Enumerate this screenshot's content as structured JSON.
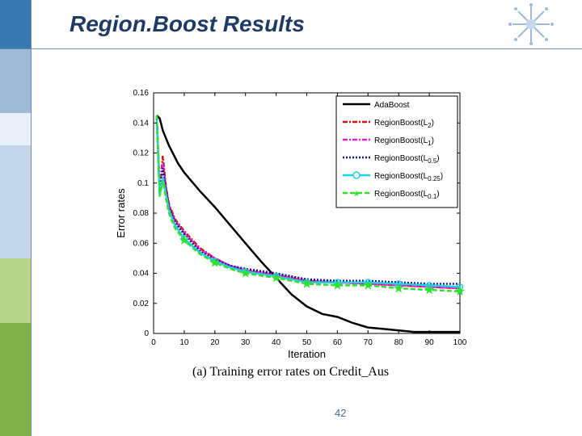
{
  "slide": {
    "title": "Region.Boost Results",
    "page_number": "42",
    "caption": "(a) Training error rates on Credit_Aus"
  },
  "colors": {
    "band_blue": "#3a78b4",
    "band_light": "#9dbbd8",
    "band_green": "#7fb24a",
    "band_lightgreen": "#b9d68a",
    "title": "#1f3b63"
  },
  "chart_data": {
    "type": "line",
    "xlabel": "Iteration",
    "ylabel": "Error rates",
    "xlim": [
      0,
      100
    ],
    "ylim": [
      0,
      0.16
    ],
    "xticks": [
      "0",
      "10",
      "20",
      "30",
      "40",
      "50",
      "60",
      "70",
      "80",
      "90",
      "100"
    ],
    "yticks": [
      "0",
      "0.02",
      "0.04",
      "0.06",
      "0.08",
      "0.1",
      "0.12",
      "0.14",
      "0.16"
    ],
    "grid": false,
    "legend_position": "top-right",
    "series": [
      {
        "name": "AdaBoost",
        "color": "#000000",
        "style": "solid",
        "marker": "none",
        "x": [
          1,
          2,
          3,
          5,
          8,
          10,
          15,
          20,
          25,
          30,
          35,
          40,
          45,
          50,
          55,
          60,
          65,
          70,
          75,
          80,
          85,
          90,
          95,
          100
        ],
        "y": [
          0.145,
          0.143,
          0.135,
          0.125,
          0.113,
          0.107,
          0.095,
          0.084,
          0.072,
          0.06,
          0.048,
          0.037,
          0.026,
          0.018,
          0.013,
          0.011,
          0.007,
          0.004,
          0.003,
          0.002,
          0.001,
          0.001,
          0.001,
          0.001
        ]
      },
      {
        "name": "RegionBoost(L2)",
        "label_main": "RegionBoost(L",
        "label_sub": "2",
        "label_end": ")",
        "color": "#d01010",
        "style": "dashdot",
        "marker": "none",
        "x": [
          1,
          2,
          3,
          4,
          5,
          7,
          10,
          15,
          20,
          25,
          30,
          40,
          50,
          60,
          70,
          80,
          90,
          100
        ],
        "y": [
          0.145,
          0.095,
          0.118,
          0.098,
          0.086,
          0.076,
          0.068,
          0.057,
          0.05,
          0.045,
          0.042,
          0.039,
          0.035,
          0.034,
          0.033,
          0.032,
          0.031,
          0.03
        ]
      },
      {
        "name": "RegionBoost(L1)",
        "label_main": "RegionBoost(L",
        "label_sub": "1",
        "label_end": ")",
        "color": "#e020e0",
        "style": "dashdot",
        "marker": "none",
        "x": [
          1,
          2,
          3,
          4,
          5,
          7,
          10,
          15,
          20,
          25,
          30,
          40,
          50,
          60,
          70,
          80,
          90,
          100
        ],
        "y": [
          0.145,
          0.095,
          0.113,
          0.097,
          0.085,
          0.075,
          0.067,
          0.056,
          0.05,
          0.045,
          0.042,
          0.039,
          0.035,
          0.034,
          0.033,
          0.032,
          0.031,
          0.03
        ]
      },
      {
        "name": "RegionBoost(L0.5)",
        "label_main": "RegionBoost(L",
        "label_sub": "0.5",
        "label_end": ")",
        "color": "#10108a",
        "style": "dotted",
        "marker": "none",
        "x": [
          1,
          2,
          3,
          4,
          5,
          7,
          10,
          15,
          20,
          25,
          30,
          40,
          50,
          60,
          70,
          80,
          90,
          100
        ],
        "y": [
          0.145,
          0.094,
          0.11,
          0.096,
          0.084,
          0.074,
          0.066,
          0.055,
          0.049,
          0.045,
          0.043,
          0.04,
          0.036,
          0.035,
          0.035,
          0.034,
          0.033,
          0.033
        ]
      },
      {
        "name": "RegionBoost(L0.25)",
        "label_main": "RegionBoost(L",
        "label_sub": "0.25",
        "label_end": ")",
        "color": "#20d0e8",
        "style": "solid",
        "marker": "circle",
        "x": [
          1,
          2,
          3,
          4,
          5,
          7,
          10,
          15,
          20,
          25,
          30,
          40,
          50,
          60,
          70,
          80,
          90,
          100
        ],
        "y": [
          0.145,
          0.092,
          0.104,
          0.093,
          0.082,
          0.072,
          0.063,
          0.054,
          0.048,
          0.044,
          0.041,
          0.038,
          0.034,
          0.034,
          0.034,
          0.033,
          0.032,
          0.031
        ]
      },
      {
        "name": "RegionBoost(L0.1)",
        "label_main": "RegionBoost(L",
        "label_sub": "0.1",
        "label_end": ")",
        "color": "#30e030",
        "style": "dashed",
        "marker": "star",
        "x": [
          1,
          2,
          3,
          4,
          5,
          7,
          10,
          15,
          20,
          25,
          30,
          40,
          50,
          60,
          70,
          80,
          90,
          100
        ],
        "y": [
          0.145,
          0.091,
          0.102,
          0.09,
          0.08,
          0.07,
          0.062,
          0.053,
          0.047,
          0.043,
          0.04,
          0.037,
          0.033,
          0.032,
          0.032,
          0.03,
          0.029,
          0.028
        ]
      }
    ]
  }
}
